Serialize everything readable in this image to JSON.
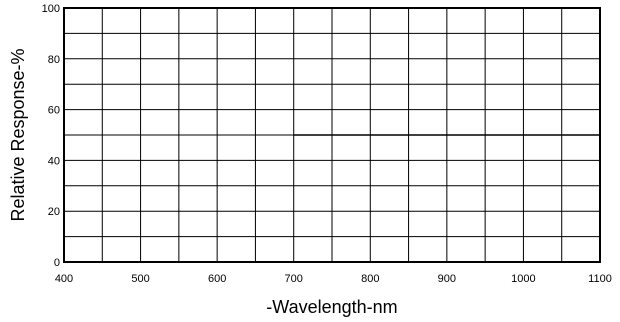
{
  "chart_data": {
    "type": "line",
    "title": "",
    "xlabel": "-Wavelength-nm",
    "ylabel": "Relative Response-%",
    "xlim": [
      400,
      1100
    ],
    "ylim": [
      0,
      100
    ],
    "x_ticks": [
      400,
      500,
      600,
      700,
      800,
      900,
      1000,
      1100
    ],
    "y_ticks": [
      0,
      20,
      40,
      60,
      80,
      100
    ],
    "x_grid_step": 50,
    "y_grid_step": 10,
    "grid": true,
    "series": [
      {
        "x": [
          700,
          1100
        ],
        "y": [
          50,
          50
        ]
      }
    ]
  }
}
